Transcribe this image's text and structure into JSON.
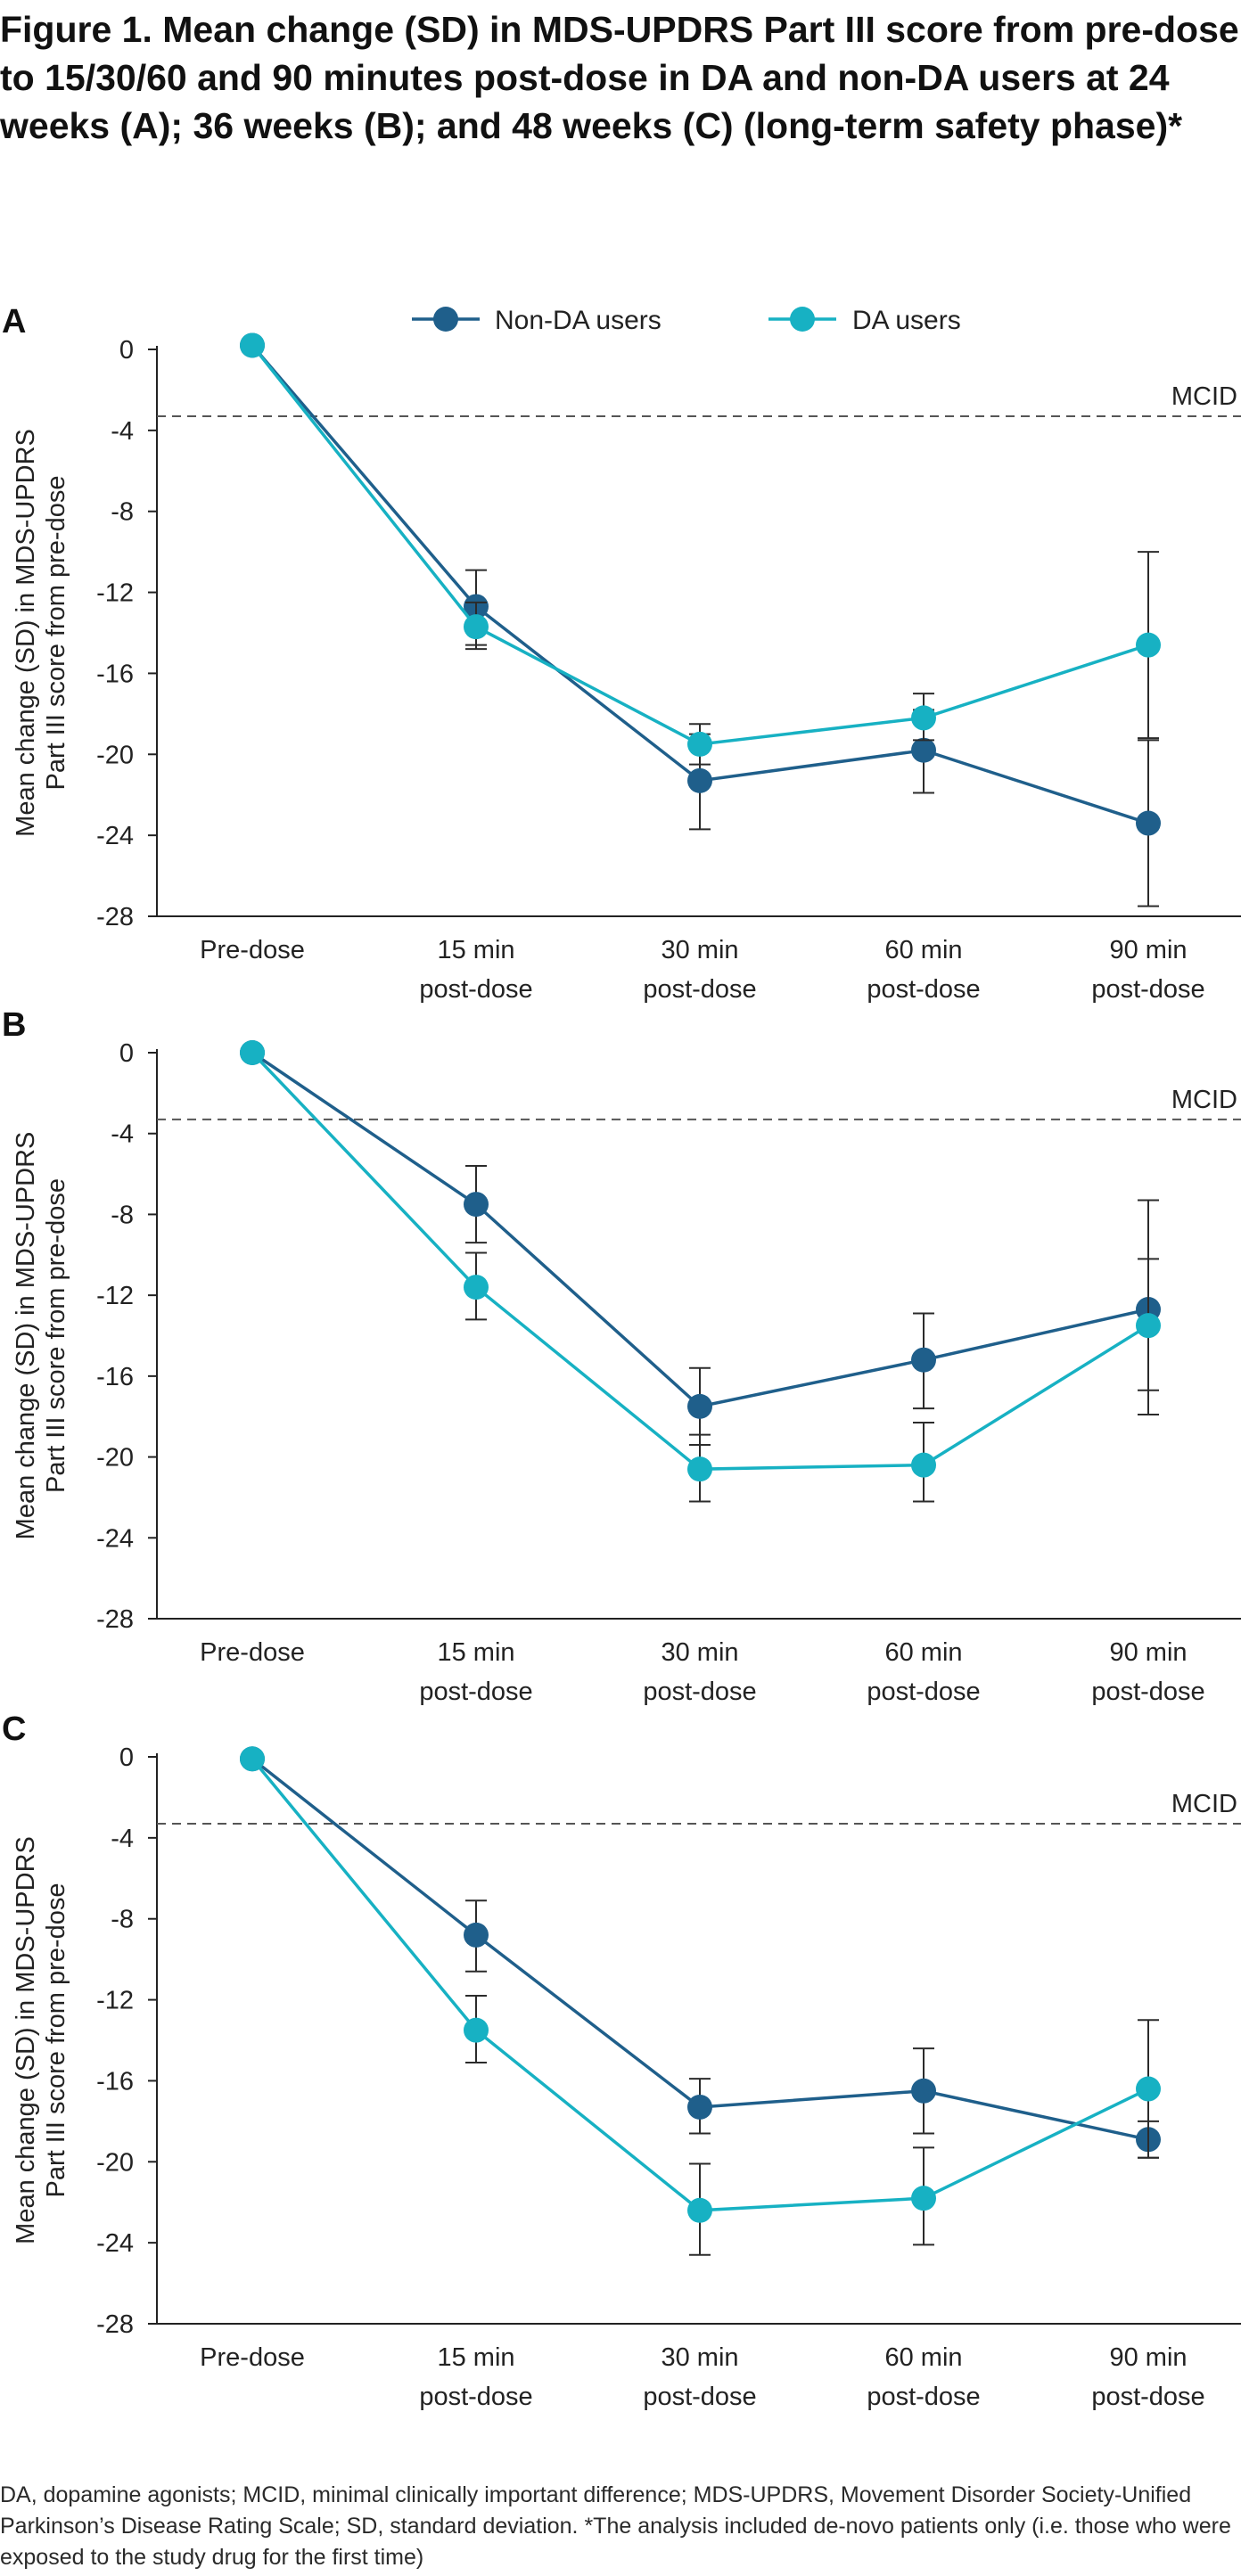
{
  "title": "Figure 1. Mean change (SD) in MDS-UPDRS Part III score from pre-dose to 15/30/60 and 90 minutes post-dose in DA and non-DA users at 24 weeks (A); 36 weeks (B); and 48 weeks (C) (long-term safety phase)*",
  "footnote": "DA, dopamine agonists; MCID, minimal clinically important difference; MDS-UPDRS, Movement Disorder Society-Unified Parkinson’s Disease Rating Scale; SD, standard deviation. *The analysis included de-novo patients only (i.e. those who were exposed to the study drug for the first time)",
  "colors": {
    "non_da": "#1f5f8b",
    "da": "#17b1c3",
    "axis": "#222222",
    "mcid_line": "#555555"
  },
  "chart_data": [
    {
      "panel": "A",
      "type": "line",
      "categories": [
        "Pre-dose",
        "15 min\npost-dose",
        "30 min\npost-dose",
        "60 min\npost-dose",
        "90 min\npost-dose"
      ],
      "ylabel": "Mean change (SD) in MDS-UPDRS\nPart III score from pre-dose",
      "yticks": [
        "0",
        "-4",
        "-8",
        "-12",
        "-16",
        "-20",
        "-24",
        "-28"
      ],
      "ylim": [
        -28,
        0
      ],
      "legend": {
        "position": "top",
        "show": true
      },
      "mcid": {
        "label": "MCID",
        "value": -3.3
      },
      "series": [
        {
          "name": "Non-DA users",
          "color_key": "non_da",
          "values": [
            0.2,
            -12.7,
            -21.3,
            -19.8,
            -23.4
          ],
          "err_low": [
            0.2,
            -14.6,
            -23.7,
            -21.9,
            -27.5
          ],
          "err_high": [
            0.2,
            -10.9,
            -19.0,
            -17.8,
            -19.3
          ]
        },
        {
          "name": "DA users",
          "color_key": "da",
          "values": [
            0.2,
            -13.7,
            -19.5,
            -18.2,
            -14.6
          ],
          "err_low": [
            0.2,
            -14.8,
            -20.5,
            -19.3,
            -19.2
          ],
          "err_high": [
            0.2,
            -12.5,
            -18.5,
            -17.0,
            -10.0
          ]
        }
      ]
    },
    {
      "panel": "B",
      "type": "line",
      "categories": [
        "Pre-dose",
        "15 min\npost-dose",
        "30 min\npost-dose",
        "60 min\npost-dose",
        "90 min\npost-dose"
      ],
      "ylabel": "Mean change (SD) in MDS-UPDRS\nPart III score from pre-dose",
      "yticks": [
        "0",
        "-4",
        "-8",
        "-12",
        "-16",
        "-20",
        "-24",
        "-28"
      ],
      "ylim": [
        -28,
        0
      ],
      "legend": {
        "show": false
      },
      "mcid": {
        "label": "MCID",
        "value": -3.3
      },
      "series": [
        {
          "name": "Non-DA users",
          "color_key": "non_da",
          "values": [
            0.0,
            -7.5,
            -17.5,
            -15.2,
            -12.7
          ],
          "err_low": [
            0.0,
            -9.4,
            -19.4,
            -17.6,
            -16.7
          ],
          "err_high": [
            0.0,
            -5.6,
            -15.6,
            -12.9,
            -7.3
          ]
        },
        {
          "name": "DA users",
          "color_key": "da",
          "values": [
            0.0,
            -11.6,
            -20.6,
            -20.4,
            -13.5
          ],
          "err_low": [
            0.0,
            -13.2,
            -22.2,
            -22.2,
            -17.9
          ],
          "err_high": [
            0.0,
            -9.9,
            -18.9,
            -18.3,
            -10.2
          ]
        }
      ]
    },
    {
      "panel": "C",
      "type": "line",
      "categories": [
        "Pre-dose",
        "15 min\npost-dose",
        "30 min\npost-dose",
        "60 min\npost-dose",
        "90 min\npost-dose"
      ],
      "ylabel": "Mean change (SD) in MDS-UPDRS\nPart III score from pre-dose",
      "yticks": [
        "0",
        "-4",
        "-8",
        "-12",
        "-16",
        "-20",
        "-24",
        "-28"
      ],
      "ylim": [
        -28,
        0
      ],
      "legend": {
        "show": false
      },
      "mcid": {
        "label": "MCID",
        "value": -3.3
      },
      "series": [
        {
          "name": "Non-DA users",
          "color_key": "non_da",
          "values": [
            -0.1,
            -8.8,
            -17.3,
            -16.5,
            -18.9
          ],
          "err_low": [
            -0.1,
            -10.6,
            -18.6,
            -18.6,
            -19.8
          ],
          "err_high": [
            -0.1,
            -7.1,
            -15.9,
            -14.4,
            -18.0
          ]
        },
        {
          "name": "DA users",
          "color_key": "da",
          "values": [
            -0.1,
            -13.5,
            -22.4,
            -21.8,
            -16.4
          ],
          "err_low": [
            -0.1,
            -15.1,
            -24.6,
            -24.1,
            -19.8
          ],
          "err_high": [
            -0.1,
            -11.8,
            -20.1,
            -19.3,
            -13.0
          ]
        }
      ]
    }
  ]
}
